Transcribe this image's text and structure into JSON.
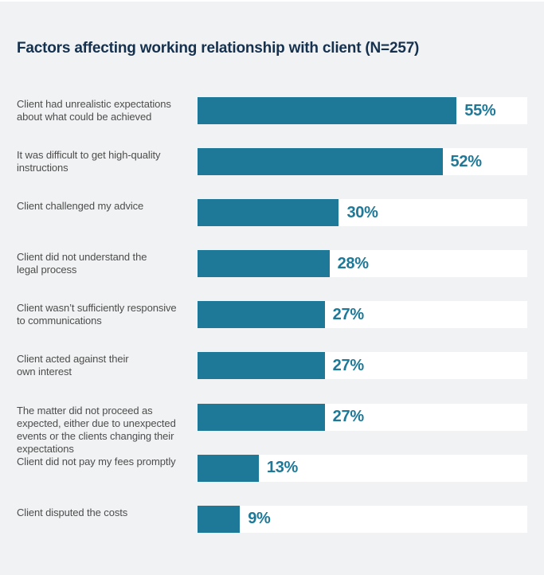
{
  "colors": {
    "background_gray": "#f1f2f3",
    "track_white": "#ffffff",
    "bar_teal": "#1e7897",
    "value_text_teal": "#1e7897",
    "title_navy": "#15314e",
    "label_gray": "#4d4d4d"
  },
  "chart_data": {
    "type": "bar",
    "orientation": "horizontal",
    "title": "Factors affecting working relationship with client (N=257)",
    "categories": [
      "Client had unrealistic expectations\nabout what could be achieved",
      "It was difficult to get high-quality\ninstructions",
      "Client challenged my advice",
      "Client did not understand the\nlegal process",
      "Client wasn’t sufficiently responsive\nto communications",
      "Client acted against their\nown interest",
      "The matter did not proceed as\nexpected, either due to unexpected\nevents or the clients changing their\nexpectations",
      "Client did not pay my fees promptly",
      "Client disputed the costs"
    ],
    "values": [
      55,
      52,
      30,
      28,
      27,
      27,
      27,
      13,
      9
    ],
    "value_labels": [
      "55%",
      "52%",
      "30%",
      "28%",
      "27%",
      "27%",
      "27%",
      "13%",
      "9%"
    ],
    "value_label_position": "right-of-bar",
    "xlim": [
      0,
      70
    ],
    "grid": false,
    "legend": false
  }
}
